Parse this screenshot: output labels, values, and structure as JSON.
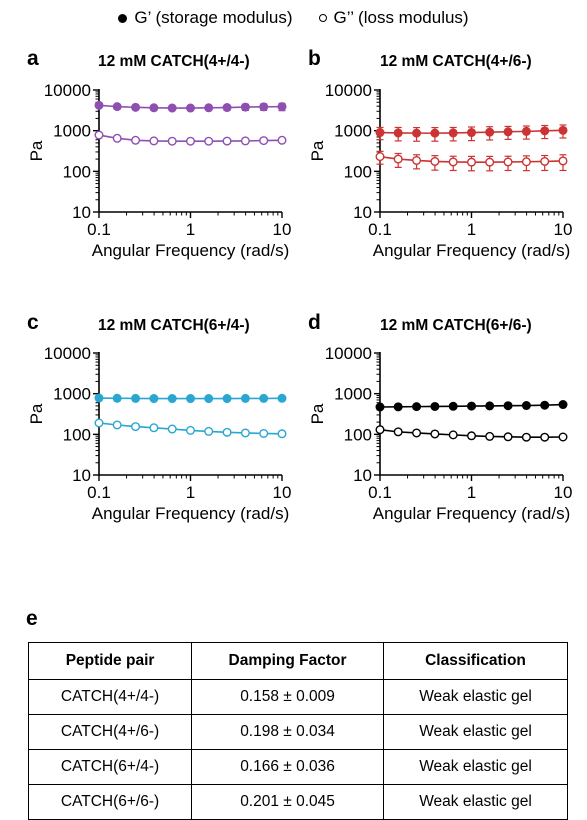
{
  "legend": {
    "filled_label": "G’ (storage modulus)",
    "open_label": "G’’ (loss modulus)"
  },
  "shared_axes": {
    "xlabel": "Angular Frequency (rad/s)",
    "ylabel": "Pa",
    "xscale": "log",
    "yscale": "log",
    "xlim": [
      0.1,
      10
    ],
    "ylim": [
      10,
      10000
    ],
    "xticks": [
      "0.1",
      "1",
      "10"
    ],
    "yticks": [
      "10",
      "100",
      "1000",
      "10000"
    ]
  },
  "chart_data": [
    {
      "panel": "a",
      "type": "scatter",
      "title": "12 mM CATCH(4+/4-)",
      "color": "#8f4fb0",
      "xlabel": "Angular Frequency (rad/s)",
      "ylabel": "Pa",
      "xlim": [
        0.1,
        10
      ],
      "ylim": [
        10,
        10000
      ],
      "xscale": "log",
      "yscale": "log",
      "x": [
        0.1,
        0.158,
        0.251,
        0.398,
        0.631,
        1.0,
        1.58,
        2.51,
        3.98,
        6.31,
        10.0
      ],
      "series": [
        {
          "name": "G’ (storage modulus)",
          "marker": "filled",
          "values": [
            4200,
            3900,
            3750,
            3650,
            3600,
            3600,
            3650,
            3700,
            3800,
            3850,
            3900
          ],
          "error": [
            450,
            400,
            380,
            400,
            420,
            450,
            500,
            550,
            650,
            700,
            800
          ]
        },
        {
          "name": "G’’ (loss modulus)",
          "marker": "open",
          "values": [
            780,
            650,
            580,
            560,
            550,
            550,
            550,
            555,
            560,
            570,
            580
          ],
          "error": [
            90,
            70,
            60,
            55,
            50,
            50,
            50,
            50,
            50,
            55,
            60
          ]
        }
      ]
    },
    {
      "panel": "b",
      "type": "scatter",
      "title": "12 mM CATCH(4+/6-)",
      "color": "#cc3333",
      "xlabel": "Angular Frequency (rad/s)",
      "ylabel": "Pa",
      "xlim": [
        0.1,
        10
      ],
      "ylim": [
        10,
        10000
      ],
      "xscale": "log",
      "yscale": "log",
      "x": [
        0.1,
        0.158,
        0.251,
        0.398,
        0.631,
        1.0,
        1.58,
        2.51,
        3.98,
        6.31,
        10.0
      ],
      "series": [
        {
          "name": "G’ (storage modulus)",
          "marker": "filled",
          "values": [
            900,
            880,
            870,
            870,
            880,
            900,
            920,
            940,
            960,
            990,
            1020
          ],
          "error": [
            300,
            320,
            320,
            320,
            320,
            330,
            330,
            330,
            340,
            350,
            360
          ]
        },
        {
          "name": "G’’ (loss modulus)",
          "marker": "open",
          "values": [
            230,
            200,
            185,
            175,
            170,
            168,
            168,
            170,
            172,
            175,
            180
          ],
          "error": [
            80,
            75,
            70,
            68,
            65,
            65,
            65,
            65,
            68,
            70,
            75
          ]
        }
      ]
    },
    {
      "panel": "c",
      "type": "scatter",
      "title": "12 mM CATCH(6+/4-)",
      "color": "#2aa7d0",
      "xlabel": "Angular Frequency (rad/s)",
      "ylabel": "Pa",
      "xlim": [
        0.1,
        10
      ],
      "ylim": [
        10,
        10000
      ],
      "xscale": "log",
      "yscale": "log",
      "x": [
        0.1,
        0.158,
        0.251,
        0.398,
        0.631,
        1.0,
        1.58,
        2.51,
        3.98,
        6.31,
        10.0
      ],
      "series": [
        {
          "name": "G’ (storage modulus)",
          "marker": "filled",
          "values": [
            780,
            770,
            765,
            760,
            760,
            760,
            760,
            760,
            765,
            765,
            770
          ],
          "error": [
            30,
            30,
            30,
            30,
            30,
            30,
            30,
            30,
            30,
            30,
            30
          ]
        },
        {
          "name": "G’’ (loss modulus)",
          "marker": "open",
          "values": [
            190,
            170,
            155,
            145,
            135,
            125,
            118,
            112,
            108,
            105,
            103
          ],
          "error": [
            10,
            10,
            9,
            9,
            8,
            8,
            8,
            8,
            8,
            8,
            8
          ]
        }
      ]
    },
    {
      "panel": "d",
      "type": "scatter",
      "title": "12 mM CATCH(6+/6-)",
      "color": "#000000",
      "xlabel": "Angular Frequency (rad/s)",
      "ylabel": "Pa",
      "xlim": [
        0.1,
        10
      ],
      "ylim": [
        10,
        10000
      ],
      "xscale": "log",
      "yscale": "log",
      "x": [
        0.1,
        0.158,
        0.251,
        0.398,
        0.631,
        1.0,
        1.58,
        2.51,
        3.98,
        6.31,
        10.0
      ],
      "series": [
        {
          "name": "G’ (storage modulus)",
          "marker": "filled",
          "values": [
            470,
            475,
            480,
            485,
            490,
            495,
            500,
            505,
            510,
            520,
            540
          ],
          "error": [
            25,
            25,
            25,
            25,
            25,
            25,
            25,
            25,
            30,
            30,
            40
          ]
        },
        {
          "name": "G’’ (loss modulus)",
          "marker": "open",
          "values": [
            130,
            115,
            108,
            102,
            97,
            92,
            89,
            87,
            85,
            85,
            86
          ],
          "error": [
            12,
            10,
            10,
            9,
            9,
            9,
            9,
            9,
            9,
            9,
            10
          ]
        }
      ]
    }
  ],
  "table": {
    "label": "e",
    "headers": [
      "Peptide pair",
      "Damping Factor",
      "Classification"
    ],
    "rows": [
      [
        "CATCH(4+/4-)",
        "0.158 ± 0.009",
        "Weak elastic gel"
      ],
      [
        "CATCH(4+/6-)",
        "0.198 ± 0.034",
        "Weak elastic gel"
      ],
      [
        "CATCH(6+/4-)",
        "0.166 ± 0.036",
        "Weak elastic gel"
      ],
      [
        "CATCH(6+/6-)",
        "0.201 ± 0.045",
        "Weak elastic gel"
      ]
    ]
  }
}
